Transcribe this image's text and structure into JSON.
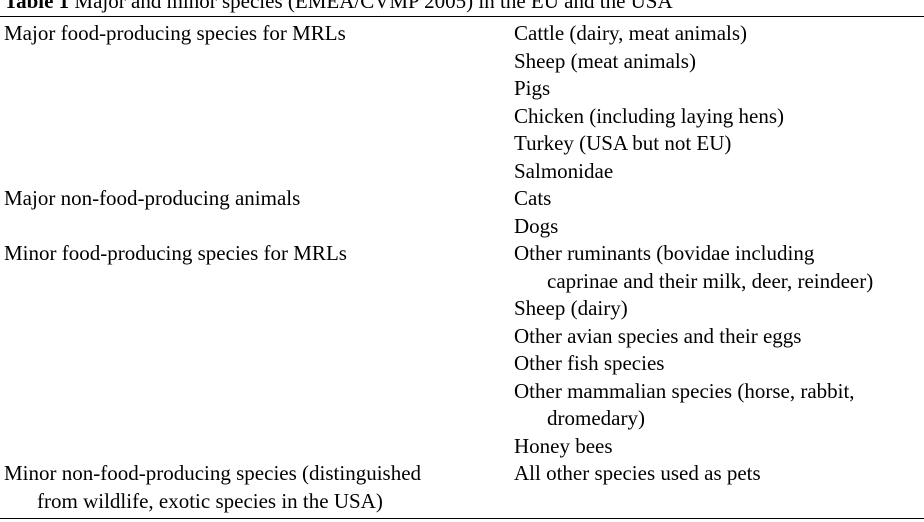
{
  "caption": {
    "label": "Table 1",
    "text": "Major and minor species (EMEA/CVMP 2005) in the EU and the USA"
  },
  "rows": [
    {
      "category": [
        "Major food-producing species for MRLs"
      ],
      "species": [
        [
          "Cattle (dairy, meat animals)"
        ],
        [
          "Sheep (meat animals)"
        ],
        [
          "Pigs"
        ],
        [
          "Chicken (including laying hens)"
        ],
        [
          "Turkey (USA but not EU)"
        ],
        [
          "Salmonidae"
        ]
      ]
    },
    {
      "category": [
        "Major non-food-producing animals"
      ],
      "species": [
        [
          "Cats"
        ],
        [
          "Dogs"
        ]
      ]
    },
    {
      "category": [
        "Minor food-producing species for MRLs"
      ],
      "species": [
        [
          "Other ruminants (bovidae including",
          "caprinae and their milk, deer, reindeer)"
        ],
        [
          "Sheep (dairy)"
        ],
        [
          "Other avian species and their eggs"
        ],
        [
          "Other fish species"
        ],
        [
          "Other mammalian species (horse, rabbit,",
          "dromedary)"
        ],
        [
          "Honey bees"
        ]
      ]
    },
    {
      "category": [
        "Minor non-food-producing species (distinguished",
        "from wildlife, exotic species in the USA)"
      ],
      "species": [
        [
          "All other species used as pets"
        ]
      ]
    }
  ]
}
